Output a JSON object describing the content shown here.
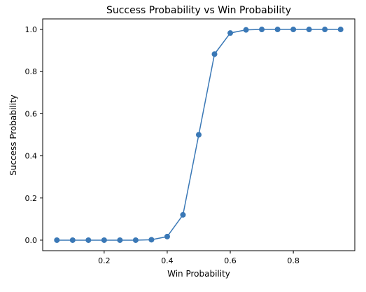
{
  "chart_data": {
    "type": "line",
    "title": "Success Probability vs Win Probability",
    "xlabel": "Win Probability",
    "ylabel": "Success Probability",
    "xlim": [
      0.005,
      0.995
    ],
    "ylim": [
      -0.05,
      1.05
    ],
    "xticks": [
      0.2,
      0.4,
      0.6,
      0.8
    ],
    "yticks": [
      0.0,
      0.2,
      0.4,
      0.6,
      0.8,
      1.0
    ],
    "xtick_labels": [
      "0.2",
      "0.4",
      "0.6",
      "0.8"
    ],
    "ytick_labels": [
      "0.0",
      "0.2",
      "0.4",
      "0.6",
      "0.8",
      "1.0"
    ],
    "grid": false,
    "series": [
      {
        "color": "#3a78b6",
        "marker": "circle",
        "x": [
          0.05,
          0.1,
          0.15,
          0.2,
          0.25,
          0.3,
          0.35,
          0.4,
          0.45,
          0.5,
          0.55,
          0.6,
          0.65,
          0.7,
          0.75,
          0.8,
          0.85,
          0.9,
          0.95
        ],
        "y": [
          0.0,
          0.0,
          0.0,
          0.0,
          0.0,
          0.0,
          0.002,
          0.017,
          0.12,
          0.5,
          0.883,
          0.983,
          0.998,
          1.0,
          1.0,
          1.0,
          1.0,
          1.0,
          1.0
        ]
      }
    ]
  }
}
